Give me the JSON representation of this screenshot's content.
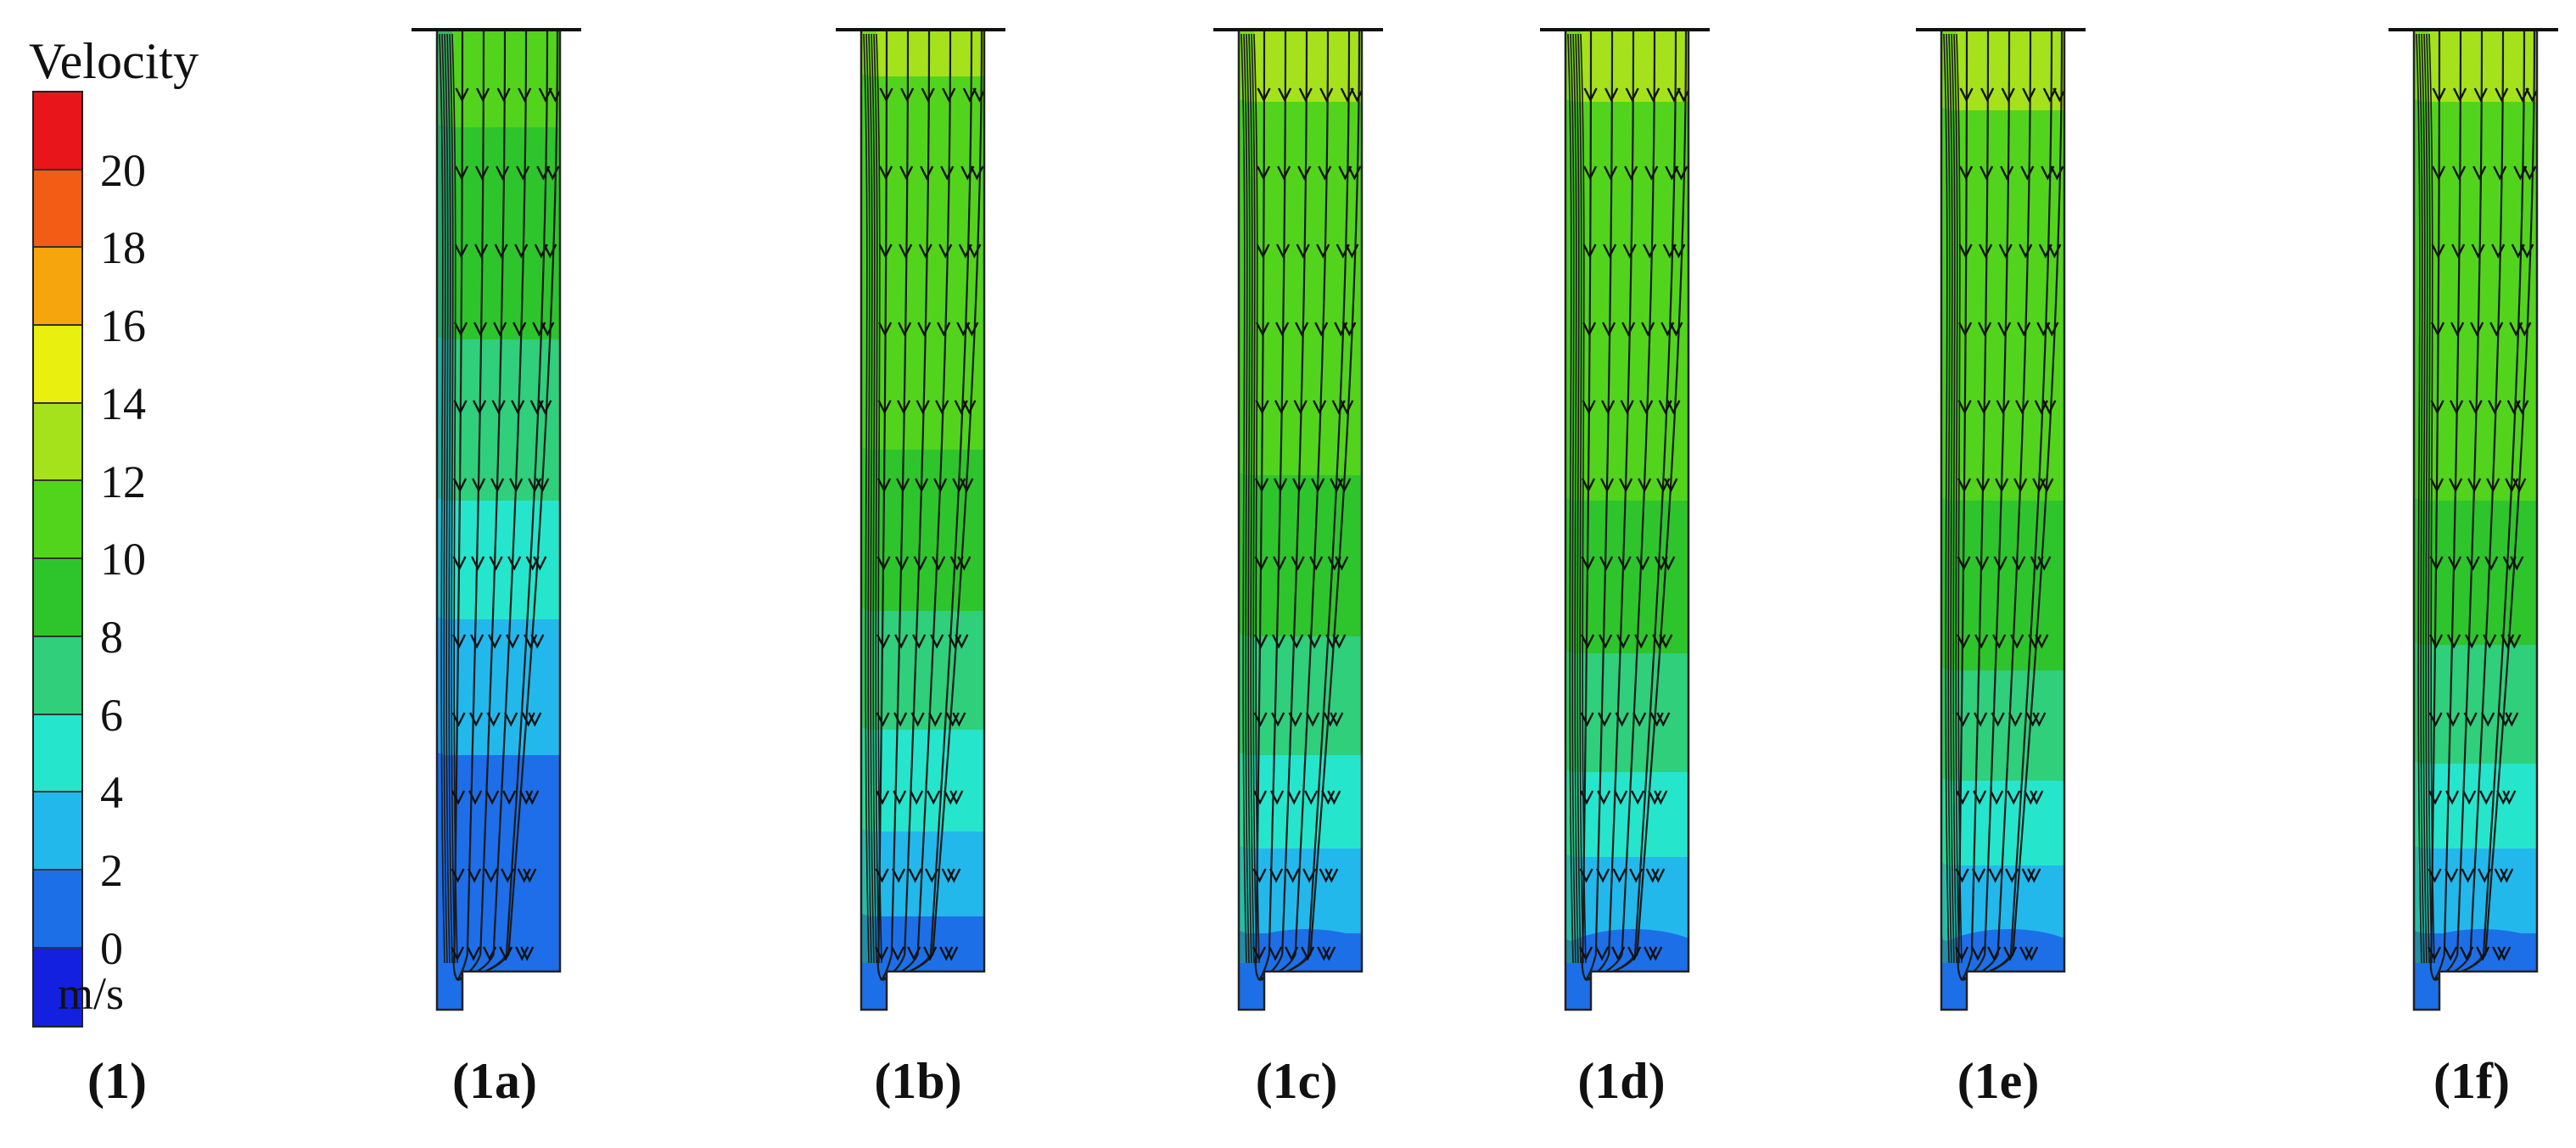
{
  "legend": {
    "title": "Velocity",
    "unit": "m/s",
    "ticks": [
      "20",
      "18",
      "16",
      "14",
      "12",
      "10",
      "8",
      "6",
      "4",
      "2",
      "0"
    ],
    "colors": [
      "#e8151a",
      "#f25c14",
      "#f7a50c",
      "#e9ef0f",
      "#a5e21b",
      "#52d41d",
      "#2ec52c",
      "#2fcf7c",
      "#25e6cc",
      "#23b8ec",
      "#1d6fe8",
      "#1420e0"
    ]
  },
  "figure_label": "(1)",
  "panels": [
    {
      "label": "(1a)",
      "variant": "a"
    },
    {
      "label": "(1b)",
      "variant": "b"
    },
    {
      "label": "(1c)",
      "variant": "c"
    },
    {
      "label": "(1d)",
      "variant": "d"
    },
    {
      "label": "(1e)",
      "variant": "e"
    },
    {
      "label": "(1f)",
      "variant": "f"
    }
  ]
}
